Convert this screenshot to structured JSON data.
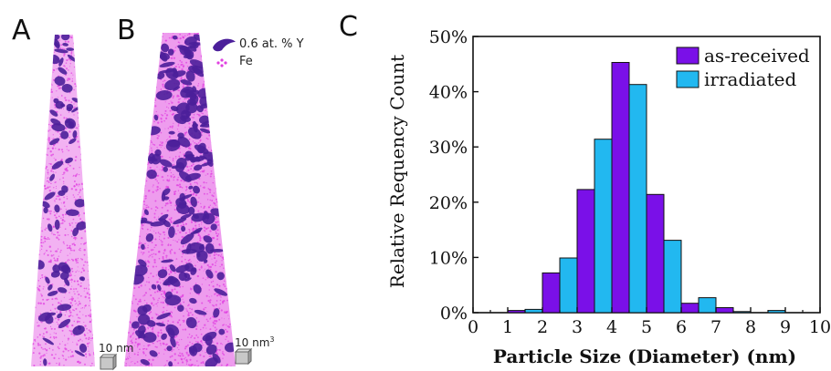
{
  "panels": {
    "a": {
      "letter": "A",
      "scale_label": "10 nm"
    },
    "b": {
      "letter": "B",
      "scale_label": "10 nm",
      "scale_sup": "3"
    },
    "c": {
      "letter": "C"
    }
  },
  "apt_legend": [
    {
      "label": "0.6 at. % Y",
      "icon": "purple-blob-icon",
      "color": "#4b1f9a"
    },
    {
      "label": "Fe",
      "icon": "magenta-dots-icon",
      "color": "#e040e0"
    }
  ],
  "colors": {
    "tip_fill": "#f0a8f0",
    "tip_dots": "#e040e0",
    "cluster": "#4b1f9a"
  },
  "chart_data": {
    "type": "bar",
    "xlabel": "Particle Size (Diameter) (nm)",
    "ylabel": "Relative Requency Count",
    "xlim": [
      0,
      10
    ],
    "ylim": [
      0,
      50
    ],
    "x_ticks": [
      "0",
      "1",
      "2",
      "3",
      "4",
      "5",
      "6",
      "7",
      "8",
      "9",
      "10"
    ],
    "y_ticks": [
      "0%",
      "10%",
      "20%",
      "30%",
      "40%",
      "50%"
    ],
    "legend_position": "top-right",
    "grid": false,
    "bin_centers": [
      1.25,
      1.75,
      2.25,
      2.75,
      3.25,
      3.75,
      4.25,
      4.75,
      5.25,
      5.75,
      6.25,
      6.75,
      7.25,
      7.75,
      8.25,
      8.75,
      9.25
    ],
    "series": [
      {
        "name": "as-received",
        "color": "#7a10e8",
        "values": [
          0.4,
          0,
          7.2,
          0,
          22.3,
          0,
          45.3,
          0,
          21.4,
          0,
          1.7,
          0,
          0.9,
          0,
          0,
          0,
          0
        ]
      },
      {
        "name": "irradiated",
        "color": "#22b8f0",
        "values": [
          0,
          0.6,
          0,
          9.9,
          0,
          31.4,
          0,
          41.3,
          0,
          13.1,
          0,
          2.7,
          0,
          0.2,
          0,
          0.4,
          0
        ]
      }
    ]
  }
}
